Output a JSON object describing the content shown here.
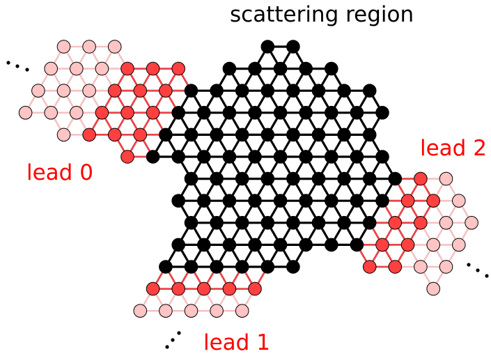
{
  "title": "scattering region",
  "leads": [
    {
      "label": "lead 0",
      "continuation": "..."
    },
    {
      "label": "lead 1",
      "continuation": "..."
    },
    {
      "label": "lead 2",
      "continuation": "..."
    }
  ],
  "colors": {
    "scattering_site": "#000000",
    "scattering_bond": "#000000",
    "lead_unit_cell_site": "#ff4040",
    "lead_unit_cell_bond": "#e8454a",
    "lead_extension_site": "#ffc4c4",
    "lead_extension_bond": "#f5c2c2",
    "lead_label": "#ff0000",
    "site_outline": "#000000"
  },
  "legend": []
}
